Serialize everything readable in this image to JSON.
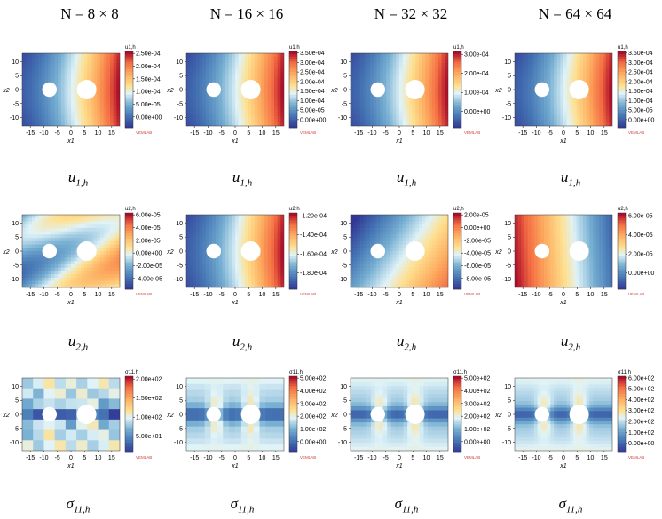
{
  "column_titles": [
    "N = 8 × 8",
    "N = 16 × 16",
    "N = 32 × 32",
    "N = 64 × 64"
  ],
  "row_captions": [
    {
      "main": "u",
      "sub": "1,h"
    },
    {
      "main": "u",
      "sub": "2,h"
    },
    {
      "main": "σ",
      "sub": "11,h"
    }
  ],
  "watermark": "VEMLAB",
  "chart_data": [
    {
      "type": "heatmap",
      "row": 0,
      "col": 0,
      "colorbar_title": "u1,h",
      "xlabel": "x1",
      "ylabel": "x2",
      "x_ticks": [
        -15,
        -10,
        -5,
        0,
        5,
        10,
        15
      ],
      "y_ticks": [
        10,
        5,
        0,
        -5,
        -10
      ],
      "cbar_ticks": [
        "2.50e-04",
        "2.00e-04",
        "1.50e-04",
        "1.00e-04",
        "5.00e-05",
        "0.00e+00"
      ],
      "pattern": "x",
      "mesh": "smooth"
    },
    {
      "type": "heatmap",
      "row": 0,
      "col": 1,
      "colorbar_title": "u1,h",
      "xlabel": "x1",
      "ylabel": "x2",
      "x_ticks": [
        -15,
        -10,
        -5,
        0,
        5,
        10,
        15
      ],
      "y_ticks": [
        10,
        5,
        0,
        -5,
        -10
      ],
      "cbar_ticks": [
        "3.50e-04",
        "3.00e-04",
        "2.50e-04",
        "2.00e-04",
        "1.50e-04",
        "1.00e-04",
        "5.00e-05",
        "0.00e+00"
      ],
      "pattern": "x",
      "mesh": "smooth"
    },
    {
      "type": "heatmap",
      "row": 0,
      "col": 2,
      "colorbar_title": "u1,h",
      "xlabel": "x1",
      "ylabel": "x2",
      "x_ticks": [
        -15,
        -10,
        -5,
        0,
        5,
        10,
        15
      ],
      "y_ticks": [
        10,
        5,
        0,
        -5,
        -10
      ],
      "cbar_ticks": [
        "3.00e-04",
        "2.00e-04",
        "1.00e-04",
        "0.00e+00"
      ],
      "pattern": "x",
      "mesh": "smooth"
    },
    {
      "type": "heatmap",
      "row": 0,
      "col": 3,
      "colorbar_title": "u1,h",
      "xlabel": "x1",
      "ylabel": "x2",
      "x_ticks": [
        -15,
        -10,
        -5,
        0,
        5,
        10,
        15
      ],
      "y_ticks": [
        10,
        5,
        0,
        -5,
        -10
      ],
      "cbar_ticks": [
        "3.50e-04",
        "3.00e-04",
        "2.50e-04",
        "2.00e-04",
        "1.50e-04",
        "1.00e-04",
        "5.00e-05",
        "0.00e+00"
      ],
      "pattern": "x",
      "mesh": "smooth"
    },
    {
      "type": "heatmap",
      "row": 1,
      "col": 0,
      "colorbar_title": "u2,h",
      "xlabel": "x1",
      "ylabel": "x2",
      "x_ticks": [
        -15,
        -10,
        -5,
        0,
        5,
        10,
        15
      ],
      "y_ticks": [
        10,
        5,
        0,
        -5,
        -10
      ],
      "cbar_ticks": [
        "6.00e-05",
        "4.00e-05",
        "2.00e-05",
        "0.00e+00",
        "-2.00e-05",
        "-4.00e-05"
      ],
      "pattern": "mixed",
      "mesh": "smooth"
    },
    {
      "type": "heatmap",
      "row": 1,
      "col": 1,
      "colorbar_title": "u2,h",
      "xlabel": "x1",
      "ylabel": "x2",
      "x_ticks": [
        -15,
        -10,
        -5,
        0,
        5,
        10,
        15
      ],
      "y_ticks": [
        10,
        5,
        0,
        -5,
        -10
      ],
      "cbar_ticks": [
        "-1.20e-04",
        "-1.40e-04",
        "-1.60e-04",
        "-1.80e-04"
      ],
      "pattern": "x",
      "mesh": "smooth"
    },
    {
      "type": "heatmap",
      "row": 1,
      "col": 2,
      "colorbar_title": "u2,h",
      "xlabel": "x1",
      "ylabel": "x2",
      "x_ticks": [
        -15,
        -10,
        -5,
        0,
        5,
        10,
        15
      ],
      "y_ticks": [
        10,
        5,
        0,
        -5,
        -10
      ],
      "cbar_ticks": [
        "2.00e-05",
        "0.00e+00",
        "-2.00e-05",
        "-4.00e-05",
        "-6.00e-05",
        "-8.00e-05"
      ],
      "pattern": "diag",
      "mesh": "smooth"
    },
    {
      "type": "heatmap",
      "row": 1,
      "col": 3,
      "colorbar_title": "u2,h",
      "xlabel": "x1",
      "ylabel": "x2",
      "x_ticks": [
        -15,
        -10,
        -5,
        0,
        5,
        10,
        15
      ],
      "y_ticks": [
        10,
        5,
        0,
        -5,
        -10
      ],
      "cbar_ticks": [
        "6.00e-05",
        "4.00e-05",
        "2.00e-05",
        "0.00e+00"
      ],
      "pattern": "negx",
      "mesh": "smooth"
    },
    {
      "type": "heatmap",
      "row": 2,
      "col": 0,
      "colorbar_title": "σ11,h",
      "xlabel": "x1",
      "ylabel": "x2",
      "x_ticks": [
        -15,
        -10,
        -5,
        0,
        5,
        10,
        15
      ],
      "y_ticks": [
        10,
        5,
        0,
        -5,
        -10
      ],
      "cbar_ticks": [
        "2.00e+02",
        "1.50e+02",
        "1.00e+02",
        "5.00e+01"
      ],
      "pattern": "stress",
      "mesh": "coarse"
    },
    {
      "type": "heatmap",
      "row": 2,
      "col": 1,
      "colorbar_title": "σ11,h",
      "xlabel": "x1",
      "ylabel": "x2",
      "x_ticks": [
        -15,
        -10,
        -5,
        0,
        5,
        10,
        15
      ],
      "y_ticks": [
        10,
        5,
        0,
        -5,
        -10
      ],
      "cbar_ticks": [
        "5.00e+02",
        "4.00e+02",
        "3.00e+02",
        "2.00e+02",
        "1.00e+02",
        "0.00e+00"
      ],
      "pattern": "stress",
      "mesh": "medium"
    },
    {
      "type": "heatmap",
      "row": 2,
      "col": 2,
      "colorbar_title": "σ11,h",
      "xlabel": "x1",
      "ylabel": "x2",
      "x_ticks": [
        -15,
        -10,
        -5,
        0,
        5,
        10,
        15
      ],
      "y_ticks": [
        10,
        5,
        0,
        -5,
        -10
      ],
      "cbar_ticks": [
        "5.00e+02",
        "4.00e+02",
        "3.00e+02",
        "2.00e+02",
        "1.00e+02",
        "0.00e+00"
      ],
      "pattern": "stress",
      "mesh": "fine"
    },
    {
      "type": "heatmap",
      "row": 2,
      "col": 3,
      "colorbar_title": "σ11,h",
      "xlabel": "x1",
      "ylabel": "x2",
      "x_ticks": [
        -15,
        -10,
        -5,
        0,
        5,
        10,
        15
      ],
      "y_ticks": [
        10,
        5,
        0,
        -5,
        -10
      ],
      "cbar_ticks": [
        "6.00e+02",
        "5.00e+02",
        "4.00e+02",
        "3.00e+02",
        "2.00e+02",
        "1.00e+02",
        "0.00e+00"
      ],
      "pattern": "stress",
      "mesh": "finest"
    }
  ]
}
